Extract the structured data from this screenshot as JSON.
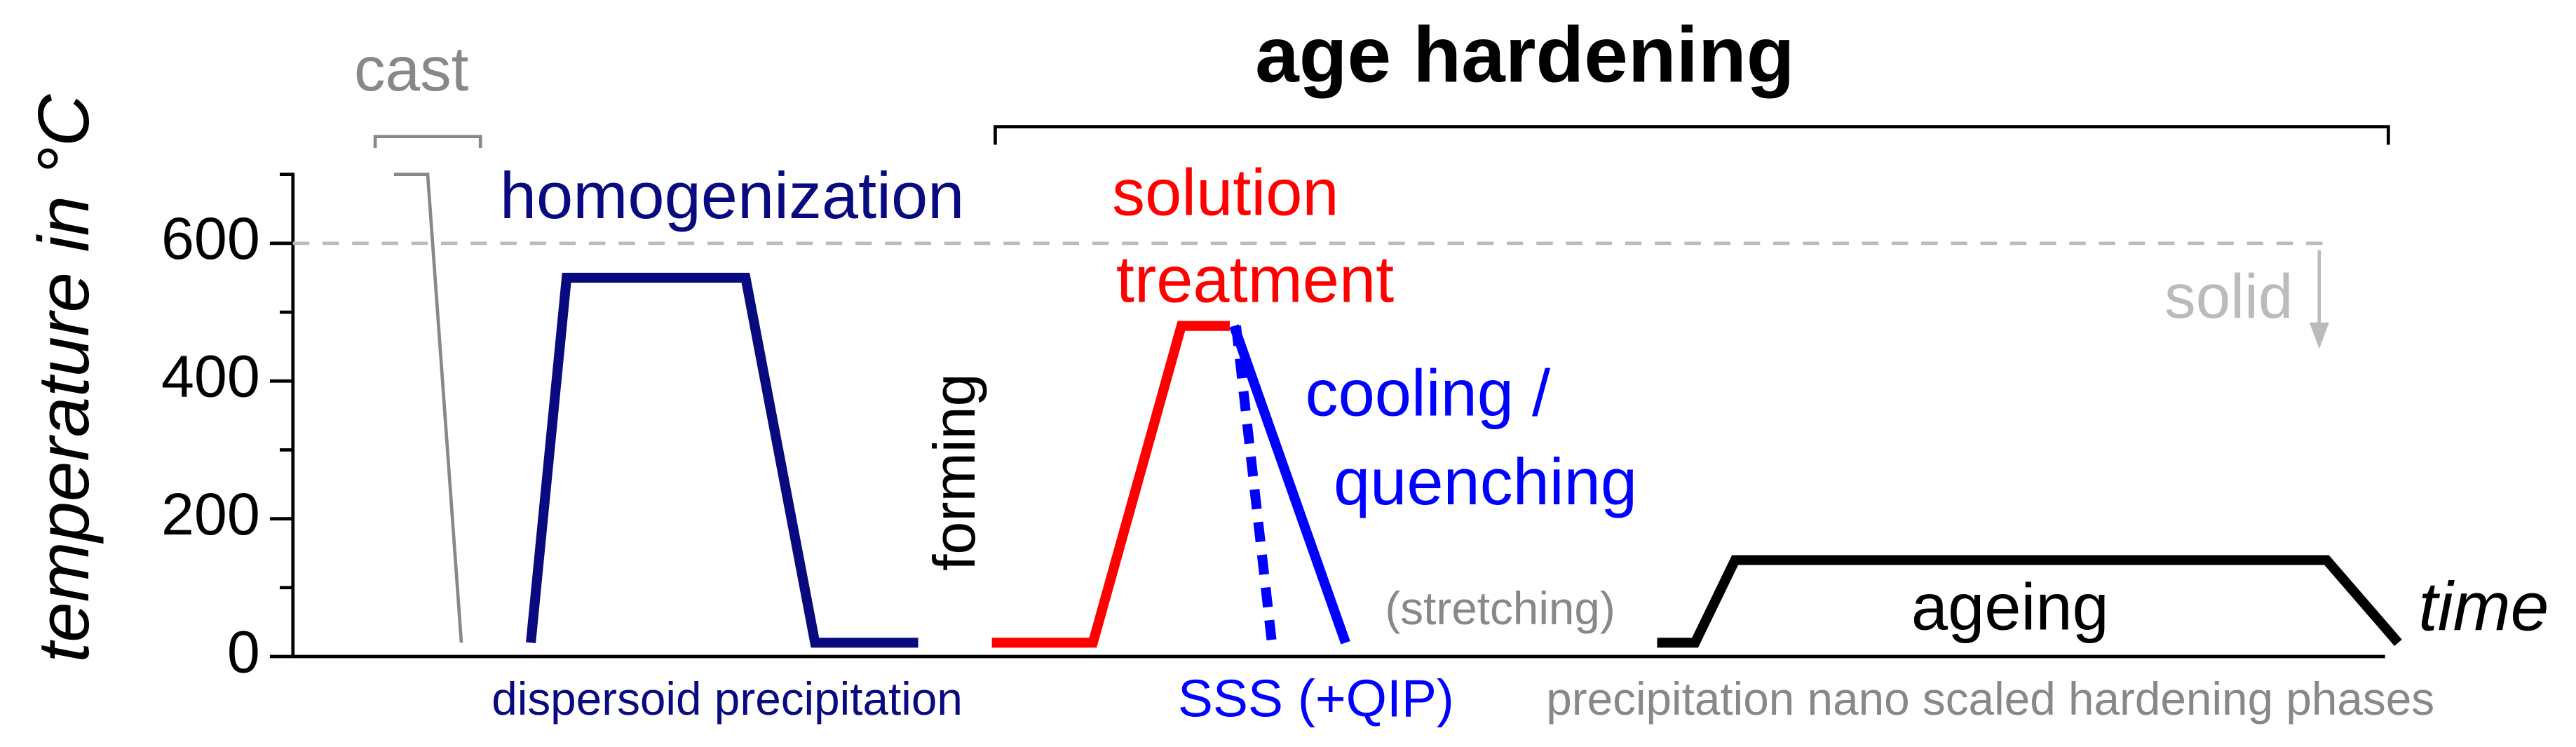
{
  "chart_data": {
    "type": "line",
    "y_label": "temperature in °C",
    "ylim": [
      0,
      700
    ],
    "yticks": [
      0,
      200,
      400,
      600
    ],
    "yminorticks": [
      100,
      300,
      500,
      700
    ],
    "xlim": [
      0,
      100
    ],
    "reference_lines": [
      {
        "value": 600,
        "label": "solid",
        "color": "#bbbbbb"
      }
    ],
    "series": [
      {
        "color": "#888888",
        "dash": "solid",
        "x": [
          4.8,
          6.4,
          8.0
        ],
        "values": [
          700,
          700,
          20
        ]
      },
      {
        "color": "#0a0a80",
        "dash": "solid",
        "x": [
          11.3,
          13.0,
          21.5,
          24.8,
          29.7
        ],
        "values": [
          20,
          550,
          550,
          20,
          20
        ]
      },
      {
        "color": "#ff0000",
        "dash": "solid",
        "x": [
          33.2,
          38.0,
          42.2,
          44.5
        ],
        "values": [
          20,
          20,
          480,
          480
        ]
      },
      {
        "color": "#0000ff",
        "dash": "solid",
        "x": [
          44.7,
          50.0
        ],
        "values": [
          480,
          20
        ]
      },
      {
        "color": "#0000ff",
        "dash": "dotted",
        "x": [
          44.8,
          46.5
        ],
        "values": [
          480,
          20
        ]
      },
      {
        "color": "#000000",
        "dash": "solid",
        "x": [
          64.8,
          66.6,
          68.5,
          96.6,
          100
        ],
        "values": [
          20,
          20,
          140,
          140,
          20
        ]
      }
    ],
    "annotations": [
      "cast",
      "age hardening",
      "homogenization",
      "solution",
      "treatment",
      "cooling /",
      "quenching",
      "forming",
      "(stretching)",
      "ageing",
      "time",
      "dispersoid precipitation",
      "SSS (+QIP)",
      "precipitation nano scaled hardening phases"
    ]
  }
}
